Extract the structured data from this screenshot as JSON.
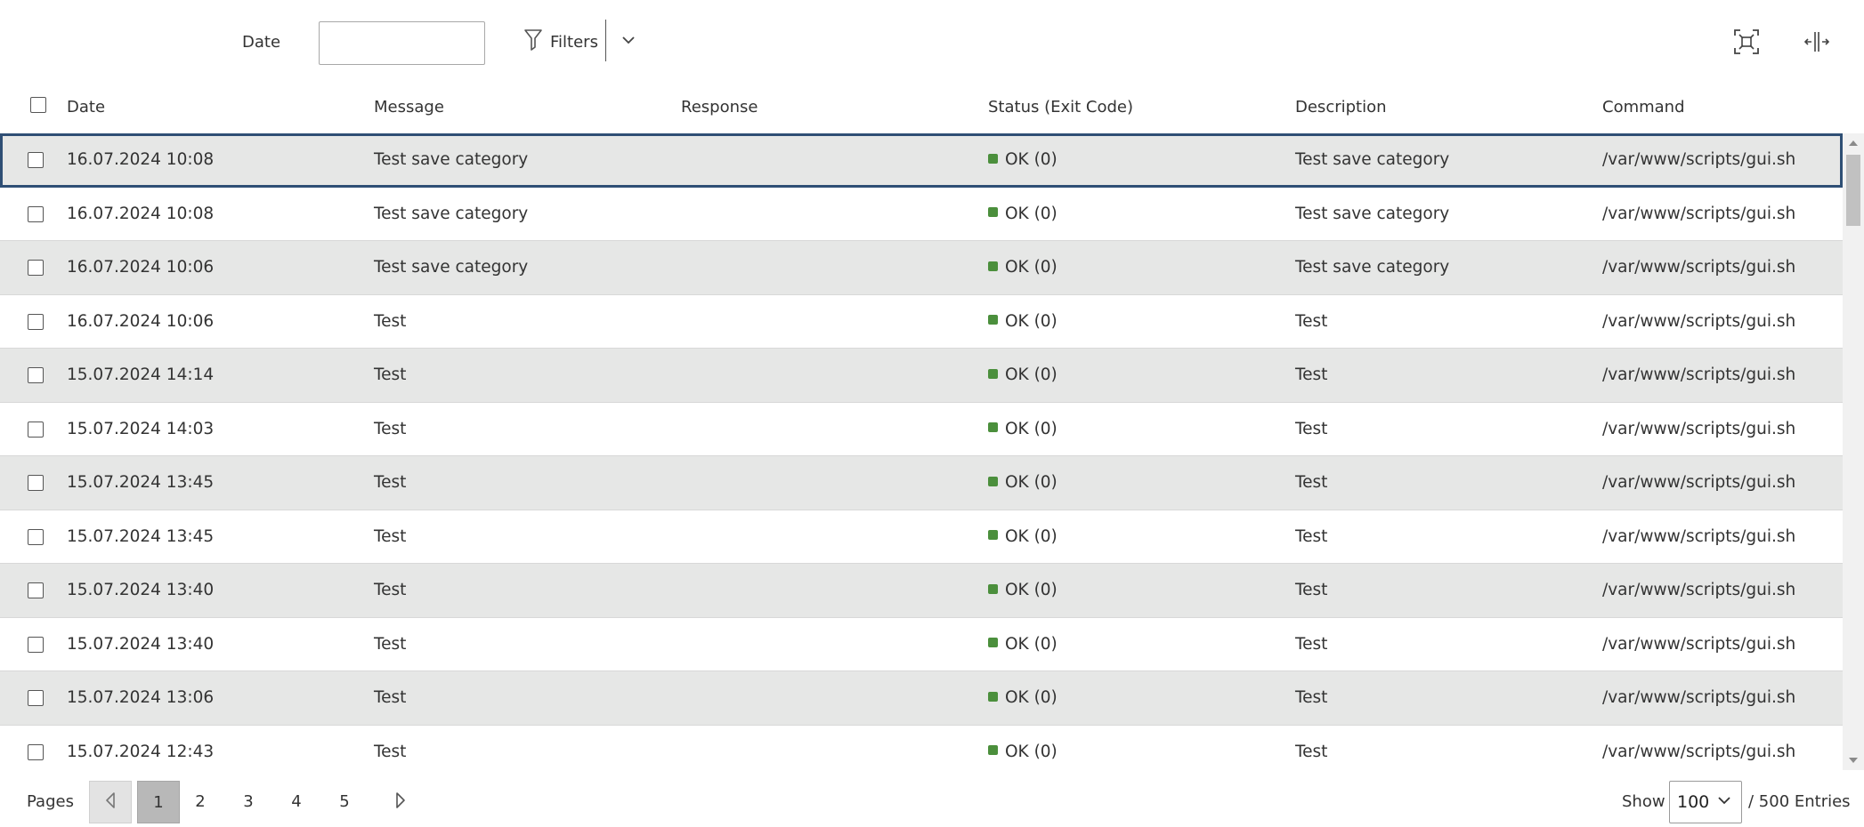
{
  "toolbar": {
    "date_label": "Date",
    "date_value": "",
    "filters_label": "Filters",
    "icons": [
      "filter-funnel-icon",
      "chevron-down-icon",
      "fullscreen-icon",
      "column-resize-icon"
    ]
  },
  "table": {
    "columns": [
      "Date",
      "Message",
      "Response",
      "Status (Exit Code)",
      "Description",
      "Command"
    ],
    "status_color": "#4b8f3c",
    "selected_border_color": "#2f4f75",
    "rows": [
      {
        "date": "16.07.2024 10:08",
        "message": "Test save category",
        "response": "",
        "status": "OK (0)",
        "description": "Test save category",
        "command": "/var/www/scripts/gui.sh"
      },
      {
        "date": "16.07.2024 10:08",
        "message": "Test save category",
        "response": "",
        "status": "OK (0)",
        "description": "Test save category",
        "command": "/var/www/scripts/gui.sh"
      },
      {
        "date": "16.07.2024 10:06",
        "message": "Test save category",
        "response": "",
        "status": "OK (0)",
        "description": "Test save category",
        "command": "/var/www/scripts/gui.sh"
      },
      {
        "date": "16.07.2024 10:06",
        "message": "Test",
        "response": "",
        "status": "OK (0)",
        "description": "Test",
        "command": "/var/www/scripts/gui.sh"
      },
      {
        "date": "15.07.2024 14:14",
        "message": "Test",
        "response": "",
        "status": "OK (0)",
        "description": "Test",
        "command": "/var/www/scripts/gui.sh"
      },
      {
        "date": "15.07.2024 14:03",
        "message": "Test",
        "response": "",
        "status": "OK (0)",
        "description": "Test",
        "command": "/var/www/scripts/gui.sh"
      },
      {
        "date": "15.07.2024 13:45",
        "message": "Test",
        "response": "",
        "status": "OK (0)",
        "description": "Test",
        "command": "/var/www/scripts/gui.sh"
      },
      {
        "date": "15.07.2024 13:45",
        "message": "Test",
        "response": "",
        "status": "OK (0)",
        "description": "Test",
        "command": "/var/www/scripts/gui.sh"
      },
      {
        "date": "15.07.2024 13:40",
        "message": "Test",
        "response": "",
        "status": "OK (0)",
        "description": "Test",
        "command": "/var/www/scripts/gui.sh"
      },
      {
        "date": "15.07.2024 13:40",
        "message": "Test",
        "response": "",
        "status": "OK (0)",
        "description": "Test",
        "command": "/var/www/scripts/gui.sh"
      },
      {
        "date": "15.07.2024 13:06",
        "message": "Test",
        "response": "",
        "status": "OK (0)",
        "description": "Test",
        "command": "/var/www/scripts/gui.sh"
      },
      {
        "date": "15.07.2024 12:43",
        "message": "Test",
        "response": "",
        "status": "OK (0)",
        "description": "Test",
        "command": "/var/www/scripts/gui.sh"
      }
    ]
  },
  "pagination": {
    "label": "Pages",
    "pages": [
      "1",
      "2",
      "3",
      "4",
      "5"
    ],
    "current": "1",
    "show_label": "Show",
    "page_size": "100",
    "entries_label": "/ 500 Entries"
  }
}
